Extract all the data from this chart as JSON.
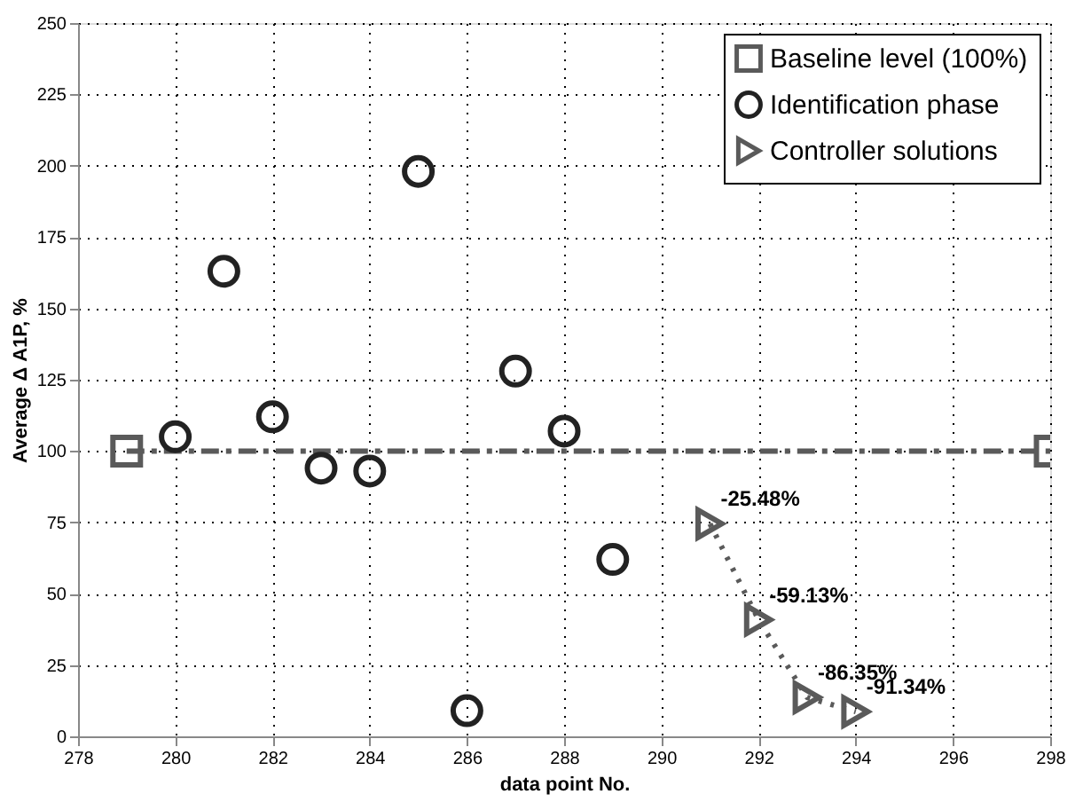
{
  "chart_data": {
    "type": "scatter",
    "xlabel": "data point No.",
    "ylabel": "Average Δ A1P, %",
    "xlim": [
      278,
      298
    ],
    "xticks": [
      278,
      280,
      282,
      284,
      286,
      288,
      290,
      292,
      294,
      296,
      298
    ],
    "ylim": [
      0,
      250
    ],
    "yticks": [
      0,
      25,
      50,
      75,
      100,
      125,
      150,
      175,
      200,
      225,
      250
    ],
    "grid": true,
    "legend": "top right",
    "series": [
      {
        "name": "Baseline level (100%)",
        "type": "line",
        "color": "#5a5a5a",
        "marker": "square",
        "line_style": "dashed",
        "x": [
          279,
          298
        ],
        "values": [
          100,
          100
        ]
      },
      {
        "name": "Identification phase",
        "color": "#222222",
        "marker": "circle",
        "x": [
          280,
          281,
          282,
          283,
          284,
          285,
          286,
          287,
          288,
          289
        ],
        "values": [
          105,
          163,
          112,
          94,
          93,
          198,
          9,
          128,
          107,
          62
        ]
      },
      {
        "name": "Controller solutions",
        "type": "line",
        "color": "#5a5a5a",
        "marker": "triangle",
        "line_style": "dotted",
        "x": [
          291,
          292,
          293,
          294
        ],
        "values": [
          74.52,
          40.87,
          13.65,
          8.66
        ]
      }
    ],
    "annotations": [
      {
        "text": "-25.48%",
        "x": 291,
        "y": 74.52
      },
      {
        "text": "-59.13%",
        "x": 292,
        "y": 40.87
      },
      {
        "text": "-86.35%",
        "x": 293,
        "y": 13.65
      },
      {
        "text": "-91.34%",
        "x": 294,
        "y": 8.66
      }
    ]
  }
}
